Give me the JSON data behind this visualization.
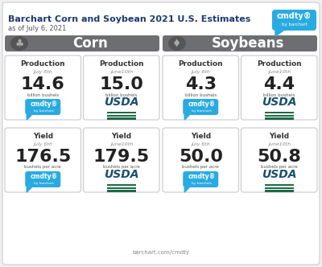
{
  "title": "Barchart Corn and Soybean 2021 U.S. Estimates",
  "subtitle": "as of July 6, 2021",
  "bg_color": "#f0f0f0",
  "header_bg": "#6d6e71",
  "cmdty_color": "#29abe2",
  "title_color": "#1f3a6e",
  "card_border": "#c8c8c8",
  "footer": "barchart.com/cmdty",
  "sections": [
    {
      "name": "Corn",
      "prod_cards": [
        {
          "label": "Production",
          "date": "July 6",
          "sup": "th",
          "value": "14.6",
          "unit": "billion bushels",
          "source": "cmdty"
        },
        {
          "label": "Production",
          "date": "June10",
          "sup": "th",
          "value": "15.0",
          "unit": "billion bushels",
          "source": "usda"
        }
      ],
      "yield_cards": [
        {
          "label": "Yield",
          "date": "July 6",
          "sup": "th",
          "value": "176.5",
          "unit": "bushels per acre",
          "source": "cmdty"
        },
        {
          "label": "Yield",
          "date": "June10",
          "sup": "th",
          "value": "179.5",
          "unit": "bushels per acre",
          "source": "usda"
        }
      ]
    },
    {
      "name": "Soybeans",
      "prod_cards": [
        {
          "label": "Production",
          "date": "July 6",
          "sup": "th",
          "value": "4.3",
          "unit": "billion bushels",
          "source": "cmdty"
        },
        {
          "label": "Production",
          "date": "June10",
          "sup": "th",
          "value": "4.4",
          "unit": "billion bushels",
          "source": "usda"
        }
      ],
      "yield_cards": [
        {
          "label": "Yield",
          "date": "July 6",
          "sup": "th",
          "value": "50.0",
          "unit": "bushels per acre",
          "source": "cmdty"
        },
        {
          "label": "Yield",
          "date": "June10",
          "sup": "th",
          "value": "50.8",
          "unit": "bushels per acre",
          "source": "usda"
        }
      ]
    }
  ]
}
